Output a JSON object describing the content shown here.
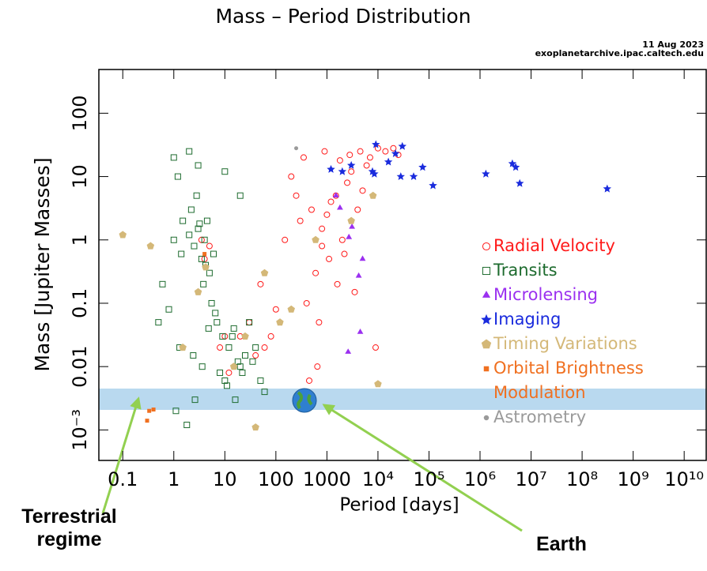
{
  "chart_data": {
    "type": "scatter",
    "title": "Mass – Period Distribution",
    "date": "11 Aug 2023",
    "source": "exoplanetarchive.ipac.caltech.edu",
    "x_label": "Period [days]",
    "y_label": "Mass [Jupiter Masses]",
    "log_x": true,
    "log_y": true,
    "xlim": [
      0.034,
      27000000000
    ],
    "ylim": [
      0.00033,
      490
    ],
    "xticks": [
      0.1,
      1,
      10,
      100,
      1000,
      {
        "value": 10000,
        "label": "10⁴"
      },
      {
        "value": 100000,
        "label": "10⁵"
      },
      {
        "value": 1000000,
        "label": "10⁶"
      },
      {
        "value": 10000000,
        "label": "10⁷"
      },
      {
        "value": 100000000,
        "label": "10⁸"
      },
      {
        "value": 1000000000,
        "label": "10⁹"
      },
      {
        "value": 10000000000,
        "label": "10¹⁰"
      }
    ],
    "yticks": [
      {
        "value": 0.001,
        "label": "10⁻³"
      },
      0.01,
      0.1,
      1,
      10,
      100
    ],
    "annotations": [
      "Terrestrial regime",
      "Earth"
    ],
    "series": [
      {
        "name": "Radial Velocity",
        "color": "#ff1a1a",
        "marker": "circle-open",
        "x": [
          300,
          500,
          800,
          1000,
          1200,
          1500,
          2000,
          2500,
          3000,
          4000,
          5000,
          6000,
          800,
          600,
          400,
          700,
          1100,
          1600,
          2200,
          3500,
          250,
          150,
          100,
          80,
          60,
          40,
          20,
          15,
          12,
          30,
          50,
          200,
          350,
          900,
          1800,
          2800,
          4500,
          7000,
          10000,
          14000,
          20000,
          25000,
          9000,
          650,
          450,
          3.5,
          4,
          5,
          8,
          10
        ],
        "values": [
          2,
          3,
          1.5,
          2.5,
          4,
          5,
          1,
          8,
          12,
          3,
          6,
          15,
          0.8,
          0.3,
          0.1,
          0.05,
          0.5,
          0.2,
          0.6,
          0.15,
          5,
          1,
          0.08,
          0.03,
          0.02,
          0.015,
          0.03,
          0.01,
          0.008,
          0.05,
          0.2,
          10,
          20,
          25,
          18,
          22,
          25,
          20,
          28,
          25,
          28,
          22,
          0.02,
          0.01,
          0.006,
          1,
          0.5,
          0.8,
          0.02,
          0.03
        ]
      },
      {
        "name": "Transits",
        "color": "#1d6b2e",
        "marker": "square-open",
        "x": [
          1,
          1.5,
          2,
          2.5,
          3,
          3.5,
          4,
          4.5,
          5,
          6,
          2.2,
          3.2,
          4.2,
          1.2,
          2.8,
          3.8,
          5.5,
          7,
          9,
          12,
          15,
          20,
          25,
          30,
          40,
          8,
          10,
          14,
          18,
          1.3,
          2.4,
          3.6,
          4.8,
          6.5,
          11,
          16,
          22,
          35,
          50,
          1.1,
          1.8,
          2.6,
          0.8,
          0.6,
          0.5,
          1,
          2,
          3,
          10,
          20,
          60,
          1.4
        ],
        "values": [
          1,
          2,
          1.2,
          0.8,
          1.5,
          0.5,
          1,
          2,
          0.3,
          0.6,
          3,
          1.8,
          0.4,
          10,
          5,
          0.2,
          0.1,
          0.05,
          0.03,
          0.02,
          0.04,
          0.01,
          0.015,
          0.05,
          0.02,
          0.008,
          0.006,
          0.03,
          0.012,
          0.02,
          0.015,
          0.01,
          0.04,
          0.07,
          0.005,
          0.003,
          0.008,
          0.012,
          0.006,
          0.002,
          0.0012,
          0.003,
          0.08,
          0.2,
          0.05,
          20,
          25,
          15,
          12,
          5,
          0.004,
          0.6
        ]
      },
      {
        "name": "Microlensing",
        "color": "#9b30f0",
        "marker": "triangle",
        "x": [
          1800,
          2700,
          4200,
          4500,
          2600,
          3100,
          1500,
          5000
        ],
        "values": [
          3.2,
          1.1,
          0.27,
          0.035,
          0.017,
          1.6,
          5,
          0.5
        ]
      },
      {
        "name": "Imaging",
        "color": "#1a2bdd",
        "marker": "star",
        "x": [
          1200,
          2000,
          3000,
          7800,
          9100,
          8500,
          16000,
          22000,
          28000,
          30000,
          50000,
          75000,
          120000,
          1300000,
          4300000,
          5000000,
          6000000,
          310000000
        ],
        "values": [
          13,
          12,
          15,
          12,
          32,
          11,
          17,
          23,
          10,
          30,
          10,
          14,
          7.2,
          11,
          16,
          14,
          7.8,
          6.4
        ]
      },
      {
        "name": "Timing Variations",
        "color": "#d4b878",
        "marker": "pentagon",
        "x": [
          0.1,
          0.35,
          4.2,
          40,
          10000,
          3,
          25,
          60,
          120,
          600,
          3000,
          8000,
          1.5,
          15,
          200
        ],
        "values": [
          1.2,
          0.8,
          0.37,
          0.0011,
          0.0053,
          0.15,
          0.03,
          0.3,
          0.05,
          1,
          2,
          5,
          0.02,
          0.01,
          0.08
        ]
      },
      {
        "name": "Orbital Brightness Modulation",
        "color": "#f07020",
        "marker": "square",
        "x": [
          0.33,
          0.3,
          0.4,
          4
        ],
        "values": [
          0.002,
          0.0014,
          0.0021,
          0.6
        ]
      },
      {
        "name": "Astrometry",
        "color": "#9a9a9a",
        "marker": "dot",
        "x": [
          250
        ],
        "values": [
          28
        ]
      }
    ]
  }
}
